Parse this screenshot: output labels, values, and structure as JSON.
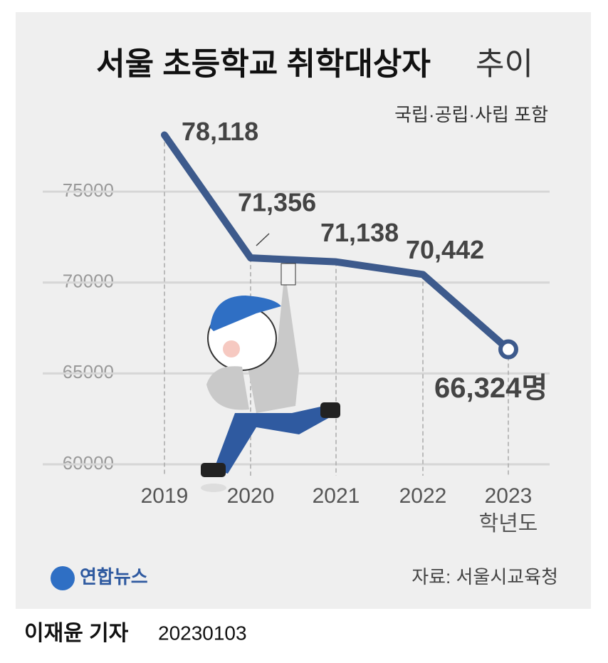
{
  "chart_data": {
    "type": "line",
    "title": "서울 초등학교 취학대상자",
    "title_suffix": "추이",
    "subtitle": "국립·공립·사립 포함",
    "categories": [
      "2019",
      "2020",
      "2021",
      "2022",
      "2023"
    ],
    "x_unit": "학년도",
    "series": [
      {
        "name": "취학대상자",
        "color": "#3d5a8c",
        "values": [
          78118,
          71356,
          71138,
          70442,
          66324
        ],
        "value_labels": [
          "78,118",
          "71,356",
          "71,138",
          "70,442",
          "66,324명"
        ]
      }
    ],
    "ylim": [
      59000,
      79000
    ],
    "yticks": [
      60000,
      65000,
      70000,
      75000
    ],
    "grid": true,
    "source": "자료: 서울시교육청",
    "logo": "연합뉴스",
    "byline": "이재윤 기자",
    "date": "20230103"
  }
}
